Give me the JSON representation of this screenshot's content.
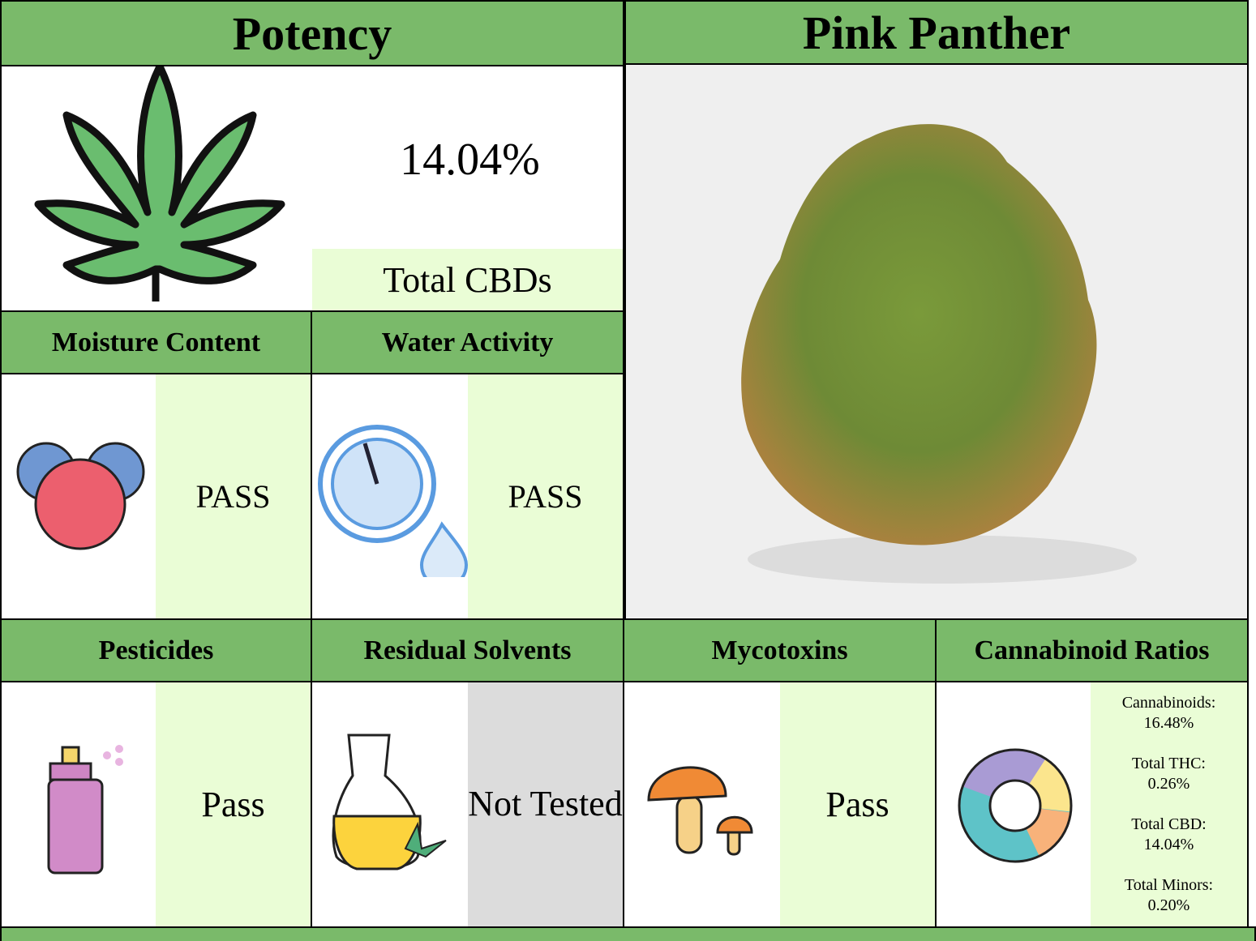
{
  "potency": {
    "title": "Potency",
    "value": "14.04%",
    "label": "Total CBDs"
  },
  "product": {
    "name": "Pink Panther"
  },
  "tests": [
    {
      "title": "Moisture Content",
      "result": "PASS"
    },
    {
      "title": "Water Activity",
      "result": "PASS"
    },
    {
      "title": "Pesticides",
      "result": "Pass"
    },
    {
      "title": "Residual Solvents",
      "result": "Not Tested"
    },
    {
      "title": "Mycotoxins",
      "result": "Pass"
    }
  ],
  "ratios": {
    "title": "Cannabinoid Ratios",
    "items": [
      {
        "label": "Cannabinoids:",
        "value": "16.48%"
      },
      {
        "label": "Total THC:",
        "value": "0.26%"
      },
      {
        "label": "Total CBD:",
        "value": "14.04%"
      },
      {
        "label": "Total Minors:",
        "value": "0.20%"
      }
    ]
  }
}
